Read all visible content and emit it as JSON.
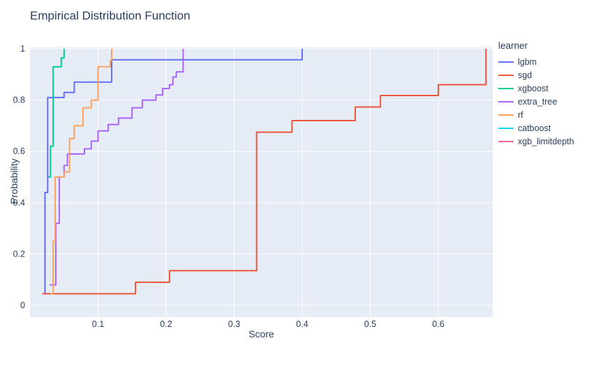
{
  "chart_data": {
    "type": "line",
    "step_mode": "hv",
    "title": "Empirical Distribution Function",
    "xlabel": "Score",
    "ylabel": "Probability",
    "xlim": [
      0,
      0.68
    ],
    "ylim": [
      0,
      1
    ],
    "xticks": [
      0.1,
      0.2,
      0.3,
      0.4,
      0.5,
      0.6
    ],
    "yticks": [
      0,
      0.2,
      0.4,
      0.6,
      0.8,
      1
    ],
    "grid": true,
    "plot_bg_color": "#E5ECF6",
    "grid_color": "#FFFFFF",
    "font_color": "#2a3f5f",
    "legend_position": "right",
    "legend_title": "learner",
    "series": [
      {
        "name": "lgbm",
        "color": "#636EFA",
        "points": [
          [
            0.021,
            0.045
          ],
          [
            0.022,
            0.44
          ],
          [
            0.026,
            0.81
          ],
          [
            0.05,
            0.83
          ],
          [
            0.065,
            0.87
          ],
          [
            0.12,
            0.957
          ],
          [
            0.4,
            1.0
          ]
        ]
      },
      {
        "name": "sgd",
        "color": "#EF553B",
        "points": [
          [
            0.018,
            0.045
          ],
          [
            0.155,
            0.09
          ],
          [
            0.205,
            0.135
          ],
          [
            0.333,
            0.675
          ],
          [
            0.385,
            0.72
          ],
          [
            0.478,
            0.773
          ],
          [
            0.515,
            0.818
          ],
          [
            0.6,
            0.86
          ],
          [
            0.67,
            1.0
          ]
        ]
      },
      {
        "name": "xgboost",
        "color": "#00CC96",
        "points": [
          [
            0.027,
            0.5
          ],
          [
            0.03,
            0.62
          ],
          [
            0.034,
            0.93
          ],
          [
            0.046,
            0.965
          ],
          [
            0.05,
            1.0
          ]
        ]
      },
      {
        "name": "extra_tree",
        "color": "#AB63FA",
        "points": [
          [
            0.029,
            0.08
          ],
          [
            0.038,
            0.32
          ],
          [
            0.043,
            0.5
          ],
          [
            0.05,
            0.545
          ],
          [
            0.055,
            0.59
          ],
          [
            0.08,
            0.61
          ],
          [
            0.09,
            0.64
          ],
          [
            0.1,
            0.68
          ],
          [
            0.115,
            0.705
          ],
          [
            0.13,
            0.73
          ],
          [
            0.15,
            0.77
          ],
          [
            0.165,
            0.8
          ],
          [
            0.185,
            0.82
          ],
          [
            0.195,
            0.845
          ],
          [
            0.205,
            0.86
          ],
          [
            0.21,
            0.89
          ],
          [
            0.215,
            0.91
          ],
          [
            0.225,
            1.0
          ]
        ]
      },
      {
        "name": "rf",
        "color": "#FFA15A",
        "points": [
          [
            0.03,
            0.045
          ],
          [
            0.034,
            0.25
          ],
          [
            0.037,
            0.5
          ],
          [
            0.05,
            0.52
          ],
          [
            0.058,
            0.65
          ],
          [
            0.065,
            0.7
          ],
          [
            0.078,
            0.77
          ],
          [
            0.09,
            0.8
          ],
          [
            0.1,
            0.93
          ],
          [
            0.118,
            0.955
          ],
          [
            0.12,
            1.0
          ]
        ]
      },
      {
        "name": "catboost",
        "color": "#19D3F3",
        "points": []
      },
      {
        "name": "xgb_limitdepth",
        "color": "#FF6692",
        "points": []
      }
    ]
  }
}
